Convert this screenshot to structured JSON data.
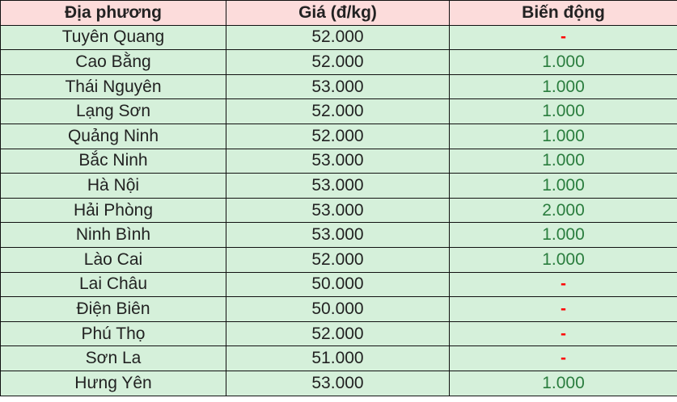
{
  "colors": {
    "header_bg": "#fcdcdb",
    "row_bg": "#d5f0da",
    "increase": "#2a7d3e",
    "no_change": "#ff0000"
  },
  "table": {
    "headers": [
      "Địa phương",
      "Giá (đ/kg)",
      "Biến động"
    ],
    "rows": [
      [
        "Tuyên Quang",
        "52.000",
        "-"
      ],
      [
        "Cao Bằng",
        "52.000",
        "1.000"
      ],
      [
        "Thái Nguyên",
        "53.000",
        "1.000"
      ],
      [
        "Lạng Sơn",
        "52.000",
        "1.000"
      ],
      [
        "Quảng Ninh",
        "52.000",
        "1.000"
      ],
      [
        "Bắc Ninh",
        "53.000",
        "1.000"
      ],
      [
        "Hà Nội",
        "53.000",
        "1.000"
      ],
      [
        "Hải Phòng",
        "53.000",
        "2.000"
      ],
      [
        "Ninh Bình",
        "53.000",
        "1.000"
      ],
      [
        "Lào Cai",
        "52.000",
        "1.000"
      ],
      [
        "Lai Châu",
        "50.000",
        "-"
      ],
      [
        "Điện Biên",
        "50.000",
        "-"
      ],
      [
        "Phú Thọ",
        "52.000",
        "-"
      ],
      [
        "Sơn La",
        "51.000",
        "-"
      ],
      [
        "Hưng Yên",
        "53.000",
        "1.000"
      ]
    ]
  }
}
